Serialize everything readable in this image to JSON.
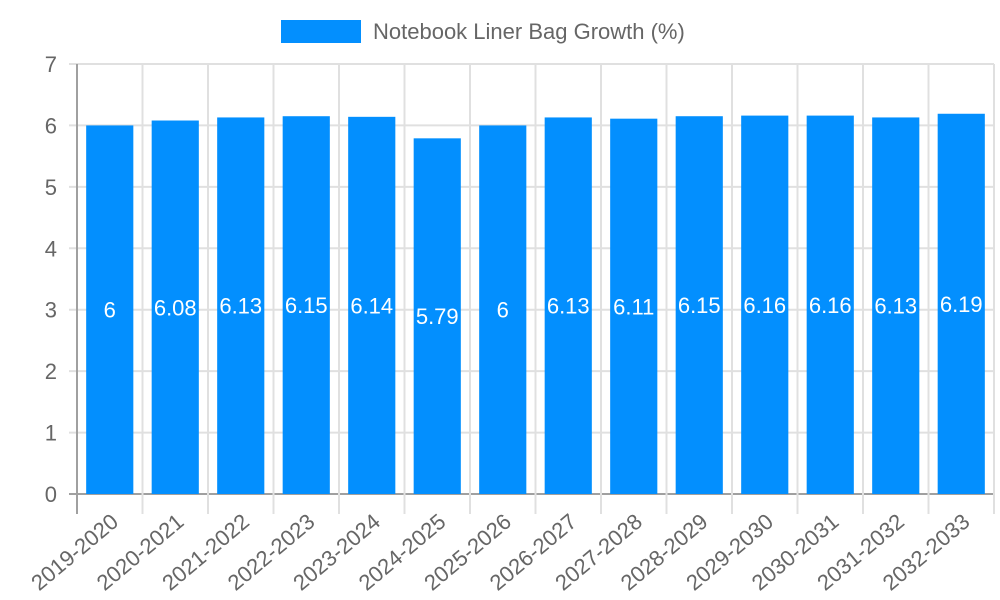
{
  "chart_data": {
    "type": "bar",
    "title": "",
    "legend": [
      {
        "label": "Notebook Liner Bag Growth (%)",
        "color": "#038ffe"
      }
    ],
    "legend_position": "top",
    "categories": [
      "2019-2020",
      "2020-2021",
      "2021-2022",
      "2022-2023",
      "2023-2024",
      "2024-2025",
      "2025-2026",
      "2026-2027",
      "2027-2028",
      "2028-2029",
      "2029-2030",
      "2030-2031",
      "2031-2032",
      "2032-2033"
    ],
    "series": [
      {
        "name": "Notebook Liner Bag Growth (%)",
        "color": "#038ffe",
        "values": [
          6,
          6.08,
          6.13,
          6.15,
          6.14,
          5.79,
          6,
          6.13,
          6.11,
          6.15,
          6.16,
          6.16,
          6.13,
          6.19
        ]
      }
    ],
    "data_labels": [
      "6",
      "6.08",
      "6.13",
      "6.15",
      "6.14",
      "5.79",
      "6",
      "6.13",
      "6.11",
      "6.15",
      "6.16",
      "6.16",
      "6.13",
      "6.19"
    ],
    "xlabel": "",
    "ylabel": "",
    "ylim": [
      0,
      7
    ],
    "yticks": [
      "0",
      "1",
      "2",
      "3",
      "4",
      "5",
      "6",
      "7"
    ],
    "grid": true
  }
}
